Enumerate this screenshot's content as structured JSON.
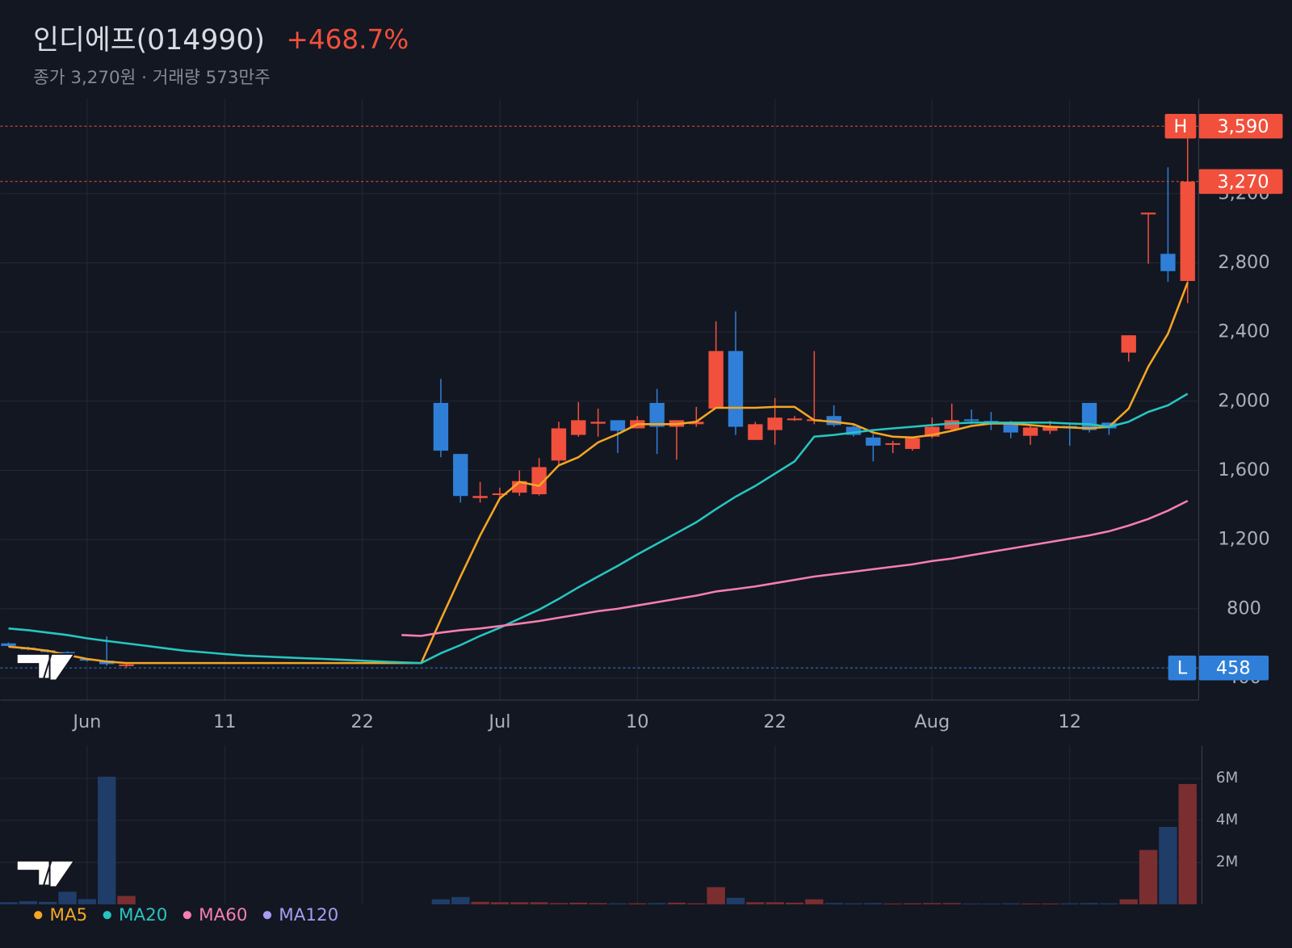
{
  "chart_data": {
    "type": "candlestick",
    "title": "인디에프(014990)",
    "change": "+468.7%",
    "subtitle": "종가 3,270원 · 거래량 573만주",
    "categories": [
      null,
      null,
      null,
      null,
      "Jun",
      null,
      null,
      null,
      null,
      null,
      null,
      "11",
      null,
      null,
      null,
      null,
      null,
      null,
      "22",
      null,
      null,
      null,
      null,
      null,
      null,
      "Jul",
      null,
      null,
      null,
      null,
      null,
      null,
      "10",
      null,
      null,
      null,
      null,
      null,
      null,
      "22",
      null,
      null,
      null,
      null,
      null,
      null,
      null,
      "Aug",
      null,
      null,
      null,
      null,
      null,
      null,
      "12",
      null,
      null,
      null,
      null,
      null,
      null
    ],
    "ohlc": [
      [
        600,
        605,
        580,
        585
      ],
      [
        575,
        580,
        560,
        565
      ],
      [
        560,
        565,
        545,
        550
      ],
      [
        550,
        555,
        520,
        525
      ],
      [
        510,
        515,
        495,
        500
      ],
      [
        500,
        640,
        470,
        480
      ],
      [
        470,
        485,
        458,
        478
      ],
      null,
      null,
      null,
      null,
      null,
      null,
      null,
      null,
      null,
      null,
      null,
      null,
      null,
      null,
      null,
      [
        1990,
        2129,
        1676,
        1714
      ],
      [
        1695,
        1695,
        1414,
        1452
      ],
      [
        1440,
        1533,
        1414,
        1452
      ],
      [
        1460,
        1500,
        1438,
        1467
      ],
      [
        1471,
        1600,
        1452,
        1538
      ],
      [
        1462,
        1671,
        1455,
        1619
      ],
      [
        1657,
        1881,
        1624,
        1843
      ],
      [
        1805,
        1995,
        1795,
        1890
      ],
      [
        1870,
        1957,
        1795,
        1881
      ],
      [
        1890,
        1890,
        1700,
        1829
      ],
      [
        1843,
        1914,
        1843,
        1890
      ],
      [
        1990,
        2071,
        1695,
        1852
      ],
      [
        1852,
        1890,
        1662,
        1890
      ],
      [
        1867,
        1967,
        1852,
        1881
      ],
      [
        1957,
        2462,
        1957,
        2290
      ],
      [
        2290,
        2519,
        1805,
        1852
      ],
      [
        1776,
        1881,
        1776,
        1867
      ],
      [
        1833,
        2019,
        1748,
        1905
      ],
      [
        1890,
        1914,
        1886,
        1900
      ],
      [
        1890,
        2290,
        1867,
        1895
      ],
      [
        1914,
        1976,
        1852,
        1862
      ],
      [
        1852,
        1862,
        1795,
        1805
      ],
      [
        1790,
        1810,
        1652,
        1743
      ],
      [
        1748,
        1771,
        1700,
        1757
      ],
      [
        1724,
        1786,
        1714,
        1786
      ],
      [
        1795,
        1905,
        1786,
        1852
      ],
      [
        1838,
        1986,
        1833,
        1890
      ],
      [
        1895,
        1952,
        1867,
        1886
      ],
      [
        1886,
        1938,
        1833,
        1867
      ],
      [
        1876,
        1886,
        1786,
        1819
      ],
      [
        1800,
        1862,
        1748,
        1848
      ],
      [
        1829,
        1886,
        1810,
        1857
      ],
      [
        1857,
        1867,
        1743,
        1848
      ],
      [
        1990,
        1990,
        1819,
        1833
      ],
      [
        1876,
        1876,
        1805,
        1843
      ],
      [
        2281,
        2381,
        2229,
        2381
      ],
      [
        3080,
        3090,
        2795,
        3090
      ],
      [
        2852,
        3352,
        2690,
        2752
      ],
      [
        2695,
        3590,
        2567,
        3270
      ]
    ],
    "up_color": "#f0503c",
    "down_color": "#2f7fd8",
    "volume": [
      100000,
      150000,
      120000,
      600000,
      250000,
      6080000,
      400000,
      null,
      null,
      null,
      null,
      null,
      null,
      null,
      null,
      null,
      null,
      null,
      null,
      null,
      null,
      null,
      240000,
      350000,
      120000,
      100000,
      100000,
      100000,
      60000,
      80000,
      60000,
      50000,
      50000,
      60000,
      80000,
      50000,
      820000,
      310000,
      100000,
      100000,
      80000,
      240000,
      60000,
      50000,
      60000,
      40000,
      50000,
      60000,
      60000,
      40000,
      40000,
      50000,
      40000,
      40000,
      50000,
      60000,
      50000,
      240000,
      2590000,
      3690000,
      5730000
    ],
    "volume_up_color": "#7a2e30",
    "volume_down_color": "#1f3d68",
    "series": [
      {
        "name": "MA5",
        "color": "#f5a623",
        "values": [
          581,
          571,
          557,
          533,
          510,
          495,
          486,
          486,
          486,
          486,
          486,
          486,
          486,
          486,
          486,
          486,
          486,
          486,
          486,
          486,
          486,
          486,
          738,
          986,
          1224,
          1438,
          1533,
          1510,
          1629,
          1676,
          1762,
          1810,
          1867,
          1867,
          1867,
          1881,
          1962,
          1962,
          1962,
          1967,
          1967,
          1890,
          1881,
          1867,
          1819,
          1795,
          1790,
          1805,
          1829,
          1857,
          1871,
          1871,
          1862,
          1852,
          1848,
          1843,
          1852,
          1957,
          2200,
          2390,
          2686
        ]
      },
      {
        "name": "MA20",
        "color": "#26c6c0",
        "values": [
          686,
          676,
          662,
          648,
          629,
          614,
          600,
          586,
          571,
          557,
          548,
          538,
          529,
          524,
          519,
          514,
          510,
          505,
          500,
          495,
          490,
          486,
          543,
          590,
          643,
          690,
          743,
          795,
          857,
          924,
          986,
          1048,
          1114,
          1176,
          1238,
          1300,
          1376,
          1448,
          1510,
          1581,
          1652,
          1795,
          1805,
          1819,
          1833,
          1843,
          1852,
          1862,
          1871,
          1876,
          1876,
          1876,
          1876,
          1876,
          1871,
          1867,
          1852,
          1881,
          1938,
          1976,
          2043
        ]
      },
      {
        "name": "MA60",
        "color": "#f77fb0",
        "values": [
          null,
          null,
          null,
          null,
          null,
          null,
          null,
          null,
          null,
          null,
          null,
          null,
          null,
          null,
          null,
          null,
          null,
          null,
          null,
          null,
          648,
          643,
          662,
          676,
          686,
          700,
          714,
          729,
          748,
          767,
          786,
          800,
          819,
          838,
          857,
          876,
          900,
          914,
          929,
          948,
          967,
          986,
          1000,
          1014,
          1029,
          1043,
          1057,
          1076,
          1090,
          1110,
          1129,
          1148,
          1167,
          1186,
          1205,
          1224,
          1248,
          1281,
          1319,
          1367,
          1424
        ]
      },
      {
        "name": "MA120",
        "color": "#a99bf5"
      }
    ],
    "ylim": [
      272,
      3748
    ],
    "yticks": [
      400,
      800,
      {
        "value": 1200,
        "label": "1,200"
      },
      {
        "value": 1600,
        "label": "1,600"
      },
      {
        "value": 2000,
        "label": "2,000"
      },
      {
        "value": 2400,
        "label": "2,400"
      },
      {
        "value": 2800,
        "label": "2,800"
      },
      {
        "value": 3200,
        "label": "3,200"
      }
    ],
    "volume_ylim": [
      0,
      7570000
    ],
    "volume_yticks": [
      {
        "value": 2000000,
        "label": "2M"
      },
      {
        "value": 4000000,
        "label": "4M"
      },
      {
        "value": 6000000,
        "label": "6M"
      }
    ],
    "high": {
      "tag": "H",
      "value": 3590,
      "label": "3,590"
    },
    "last": {
      "value": 3270,
      "label": "3,270"
    },
    "low": {
      "tag": "L",
      "value": 458,
      "label": "458"
    },
    "grid": true
  }
}
